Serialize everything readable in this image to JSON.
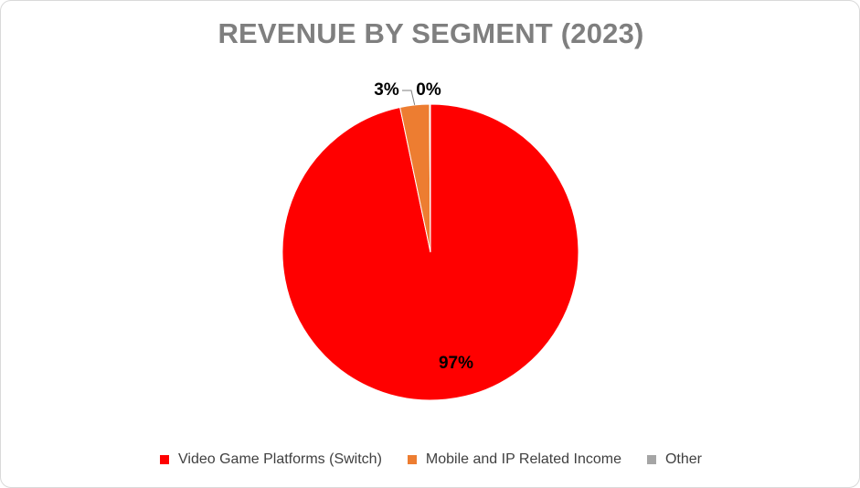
{
  "chart_data": {
    "type": "pie",
    "title": "REVENUE BY SEGMENT (2023)",
    "categories": [
      "Video Game Platforms (Switch)",
      "Mobile and IP Related Income",
      "Other"
    ],
    "values": [
      96.7,
      3.2,
      0.1
    ],
    "data_labels": [
      "97%",
      "3%",
      "0%"
    ],
    "colors": [
      "#ff0000",
      "#ed7d31",
      "#a5a5a5"
    ],
    "legend_position": "bottom"
  }
}
